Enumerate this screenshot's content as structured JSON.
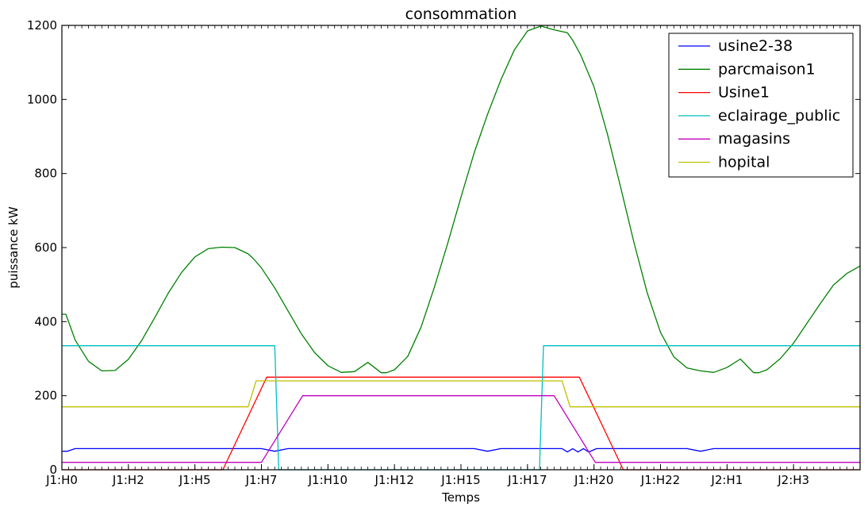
{
  "chart_data": {
    "type": "line",
    "title": "consommation",
    "xlabel": "Temps",
    "ylabel": "puissance kW",
    "ylim": [
      0,
      1200
    ],
    "xlim": [
      0,
      30
    ],
    "yticks": [
      0,
      200,
      400,
      600,
      800,
      1000,
      1200
    ],
    "x_unit": "hours from J1:H0",
    "xticks": [
      {
        "value": 0,
        "label": "J1:H0"
      },
      {
        "value": 2.5,
        "label": "J1:H2"
      },
      {
        "value": 5,
        "label": "J1:H5"
      },
      {
        "value": 7.5,
        "label": "J1:H7"
      },
      {
        "value": 10,
        "label": "J1:H10"
      },
      {
        "value": 12.5,
        "label": "J1:H12"
      },
      {
        "value": 15,
        "label": "J1:H15"
      },
      {
        "value": 17.5,
        "label": "J1:H17"
      },
      {
        "value": 20,
        "label": "J1:H20"
      },
      {
        "value": 22.5,
        "label": "J1:H22"
      },
      {
        "value": 25,
        "label": "J2:H1"
      },
      {
        "value": 27.5,
        "label": "J2:H3"
      }
    ],
    "grid": false,
    "legend_position": "top-right",
    "series": [
      {
        "name": "usine2-38",
        "color": "#0000ff",
        "x": [
          0,
          0.2,
          0.5,
          7.5,
          8.0,
          8.5,
          15.5,
          16.0,
          16.5,
          18.8,
          19.0,
          19.2,
          19.4,
          19.6,
          19.8,
          20.1,
          23.5,
          24.0,
          24.5,
          30
        ],
        "y": [
          50,
          50,
          57,
          57,
          50,
          57,
          57,
          50,
          57,
          57,
          48,
          57,
          48,
          57,
          48,
          57,
          57,
          50,
          57,
          57
        ]
      },
      {
        "name": "parcmaison1",
        "color": "#008000",
        "x": [
          0,
          0.15,
          0.5,
          1,
          1.5,
          2,
          2.5,
          3,
          3.5,
          4,
          4.5,
          5,
          5.5,
          6,
          6.5,
          7,
          7.2,
          7.5,
          8,
          8.5,
          9,
          9.5,
          10,
          10.5,
          11,
          11.5,
          12,
          12.2,
          12.5,
          13,
          13.5,
          14,
          14.5,
          15,
          15.5,
          16,
          16.5,
          17,
          17.5,
          18,
          18.5,
          19,
          19.2,
          19.5,
          20,
          20.5,
          21,
          21.5,
          22,
          22.5,
          23,
          23.5,
          24,
          24.5,
          25,
          25.5,
          26,
          26.2,
          26.5,
          27,
          27.5,
          28,
          28.5,
          29,
          29.5,
          30
        ],
        "y": [
          420,
          420,
          350,
          293,
          267,
          268,
          298,
          349,
          412,
          477,
          533,
          575,
          597,
          601,
          600,
          583,
          570,
          545,
          491,
          429,
          367,
          316,
          281,
          263,
          265,
          290,
          262,
          262,
          270,
          306,
          385,
          493,
          611,
          736,
          857,
          960,
          1053,
          1133,
          1185,
          1198,
          1188,
          1180,
          1160,
          1120,
          1034,
          908,
          763,
          614,
          478,
          371,
          305,
          275,
          267,
          263,
          276,
          299,
          262,
          262,
          270,
          300,
          342,
          395,
          448,
          499,
          530,
          550
        ]
      },
      {
        "name": "Usine1",
        "color": "#ff0000",
        "x": [
          0,
          6.05,
          7.7,
          19.45,
          21.1,
          30
        ],
        "y": [
          0,
          0,
          250,
          250,
          0,
          0
        ]
      },
      {
        "name": "eclairage_public",
        "color": "#00bfbf",
        "x": [
          0,
          8.0,
          8.15,
          17.95,
          18.1,
          30
        ],
        "y": [
          335,
          335,
          0,
          0,
          335,
          335
        ]
      },
      {
        "name": "magasins",
        "color": "#bf00bf",
        "x": [
          0,
          7.5,
          9.05,
          18.5,
          20.05,
          30
        ],
        "y": [
          20,
          20,
          200,
          200,
          20,
          20
        ]
      },
      {
        "name": "hopital",
        "color": "#bfbf00",
        "x": [
          0,
          7.0,
          7.3,
          18.8,
          19.1,
          30
        ],
        "y": [
          170,
          170,
          240,
          240,
          170,
          170
        ]
      }
    ]
  }
}
